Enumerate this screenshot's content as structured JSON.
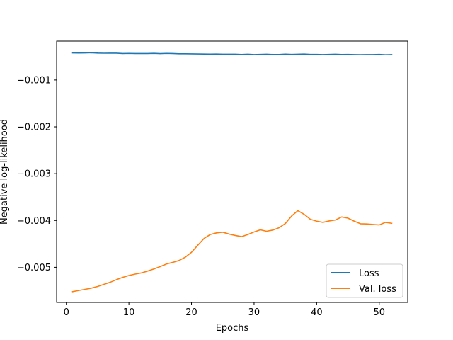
{
  "chart_data": {
    "type": "line",
    "xlabel": "Epochs",
    "ylabel": "Negative log-likelihood",
    "xlim": [
      -1.55,
      54.55
    ],
    "ylim": [
      -0.00575,
      -0.00017
    ],
    "xticks": [
      0,
      10,
      20,
      30,
      40,
      50
    ],
    "xtick_labels": [
      "0",
      "10",
      "20",
      "30",
      "40",
      "50"
    ],
    "yticks": [
      -0.001,
      -0.002,
      -0.003,
      -0.004,
      -0.005
    ],
    "ytick_labels": [
      "−0.001",
      "−0.002",
      "−0.003",
      "−0.004",
      "−0.005"
    ],
    "grid": false,
    "legend_position": "lower-right",
    "x": [
      1,
      2,
      3,
      4,
      5,
      6,
      7,
      8,
      9,
      10,
      11,
      12,
      13,
      14,
      15,
      16,
      17,
      18,
      19,
      20,
      21,
      22,
      23,
      24,
      25,
      26,
      27,
      28,
      29,
      30,
      31,
      32,
      33,
      34,
      35,
      36,
      37,
      38,
      39,
      40,
      41,
      42,
      43,
      44,
      45,
      46,
      47,
      48,
      49,
      50,
      51,
      52
    ],
    "series": [
      {
        "name": "Loss",
        "color": "#1f77b4",
        "values": [
          -0.00042,
          -0.000422,
          -0.000421,
          -0.000417,
          -0.000425,
          -0.000427,
          -0.000426,
          -0.000426,
          -0.000433,
          -0.000431,
          -0.000433,
          -0.000434,
          -0.000433,
          -0.00043,
          -0.000435,
          -0.000431,
          -0.000433,
          -0.00044,
          -0.00044,
          -0.000441,
          -0.000443,
          -0.000445,
          -0.000446,
          -0.000445,
          -0.000449,
          -0.000449,
          -0.000449,
          -0.000455,
          -0.000449,
          -0.000456,
          -0.000452,
          -0.000449,
          -0.000454,
          -0.000454,
          -0.000446,
          -0.000452,
          -0.000449,
          -0.000445,
          -0.000452,
          -0.000453,
          -0.000456,
          -0.000453,
          -0.000449,
          -0.000454,
          -0.000452,
          -0.000456,
          -0.000458,
          -0.000456,
          -0.000456,
          -0.000452,
          -0.00046,
          -0.000456
        ]
      },
      {
        "name": "Val. loss",
        "color": "#ff7f0e",
        "values": [
          -0.00552,
          -0.005495,
          -0.00547,
          -0.005445,
          -0.00541,
          -0.005365,
          -0.00532,
          -0.005265,
          -0.005215,
          -0.005175,
          -0.005145,
          -0.00512,
          -0.00508,
          -0.005035,
          -0.004985,
          -0.00493,
          -0.004895,
          -0.004855,
          -0.004785,
          -0.00468,
          -0.00453,
          -0.004385,
          -0.0043,
          -0.004265,
          -0.00425,
          -0.00429,
          -0.00432,
          -0.004345,
          -0.0043,
          -0.004245,
          -0.0042,
          -0.00423,
          -0.004205,
          -0.004155,
          -0.004065,
          -0.003905,
          -0.00379,
          -0.00387,
          -0.003975,
          -0.004015,
          -0.00404,
          -0.00401,
          -0.00399,
          -0.003925,
          -0.00395,
          -0.004015,
          -0.00407,
          -0.004075,
          -0.004085,
          -0.004095,
          -0.00404,
          -0.00406
        ]
      }
    ]
  }
}
